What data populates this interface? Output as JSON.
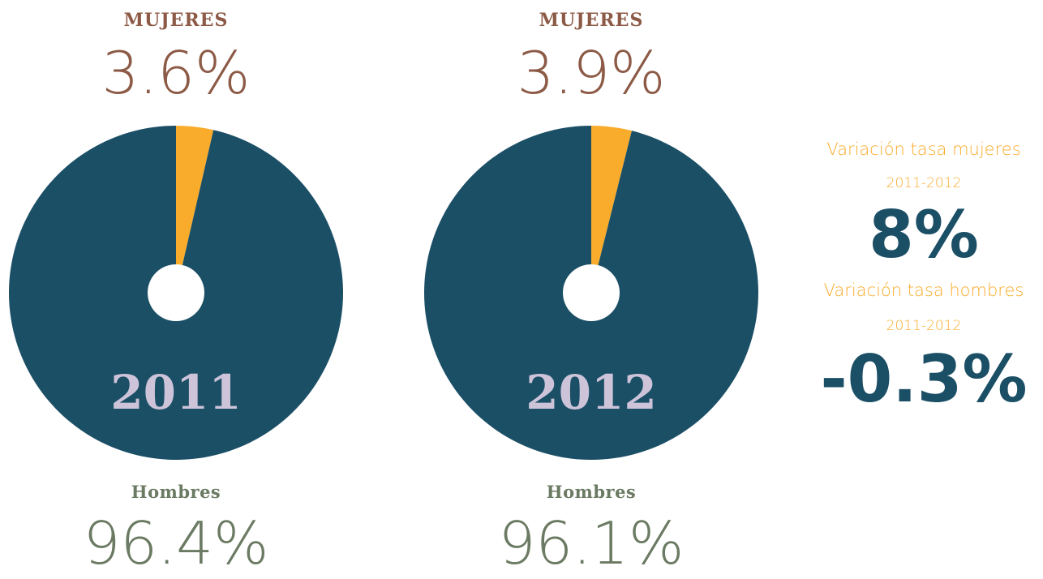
{
  "chart_data": [
    {
      "type": "pie",
      "year": "2011",
      "women_label": "MUJERES",
      "women_value": "3.6%",
      "men_label": "Hombres",
      "men_value": "96.4%",
      "slices": [
        {
          "name": "Mujeres",
          "value": 3.6,
          "color": "#f9ac2c"
        },
        {
          "name": "Hombres",
          "value": 96.4,
          "color": "#1b4f66"
        }
      ]
    },
    {
      "type": "pie",
      "year": "2012",
      "women_label": "MUJERES",
      "women_value": "3.9%",
      "men_label": "Hombres",
      "men_value": "96.1%",
      "slices": [
        {
          "name": "Mujeres",
          "value": 3.9,
          "color": "#f9ac2c"
        },
        {
          "name": "Hombres",
          "value": 96.1,
          "color": "#1b4f66"
        }
      ]
    }
  ],
  "variation": {
    "women_label": "Variación tasa mujeres",
    "women_period": "2011-2012",
    "women_value": "8%",
    "men_label": "Variación tasa hombres",
    "men_period": "2011-2012",
    "men_value": "-0.3%"
  },
  "colors": {
    "women_label": "#8c5a46",
    "men_label": "#6b7a62",
    "pie_main": "#1b4f66",
    "pie_slice": "#f9ac2c",
    "year_text": "#cdc4da",
    "variation_text": "#f9ac2c",
    "variation_value": "#1b4f66"
  }
}
